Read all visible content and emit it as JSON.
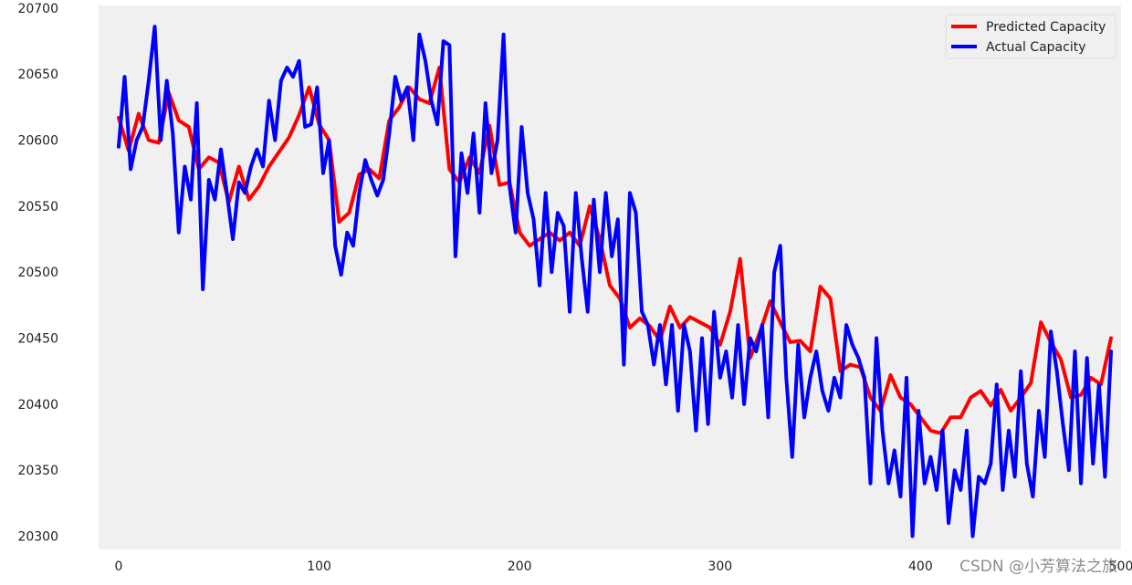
{
  "chart_data": {
    "type": "line",
    "title": "",
    "xlabel": "",
    "ylabel": "",
    "xlim": [
      -10,
      500
    ],
    "ylim": [
      20290,
      20702
    ],
    "x_ticks": [
      0,
      100,
      200,
      300,
      400,
      500
    ],
    "x_tick_labels": [
      "0",
      "100",
      "200",
      "300",
      "400",
      "500"
    ],
    "y_ticks": [
      20300,
      20350,
      20400,
      20450,
      20500,
      20550,
      20600,
      20650,
      20700
    ],
    "y_tick_labels": [
      "20300",
      "20350",
      "20400",
      "20450",
      "20500",
      "20550",
      "20600",
      "20650",
      "20700"
    ],
    "grid": false,
    "background": "#f0f0f0",
    "legend_position": "top-right",
    "series": [
      {
        "name": "Predicted Capacity",
        "color": "#ff0000",
        "x": [
          0,
          5,
          10,
          15,
          20,
          25,
          30,
          35,
          40,
          45,
          50,
          55,
          60,
          65,
          70,
          75,
          80,
          85,
          90,
          95,
          100,
          105,
          110,
          115,
          120,
          125,
          130,
          135,
          140,
          145,
          150,
          155,
          160,
          165,
          170,
          175,
          180,
          185,
          190,
          195,
          200,
          205,
          210,
          215,
          220,
          225,
          230,
          235,
          240,
          245,
          250,
          255,
          260,
          265,
          270,
          275,
          280,
          285,
          290,
          295,
          300,
          305,
          310,
          315,
          320,
          325,
          330,
          335,
          340,
          345,
          350,
          355,
          360,
          365,
          370,
          375,
          380,
          385,
          390,
          395,
          400,
          405,
          410,
          415,
          420,
          425,
          430,
          435,
          440,
          445,
          450,
          455,
          460,
          465,
          470,
          475,
          480,
          485,
          490,
          495
        ],
        "values": [
          20617,
          20592,
          20620,
          20600,
          20598,
          20636,
          20615,
          20610,
          20578,
          20587,
          20583,
          20553,
          20580,
          20555,
          20565,
          20580,
          20591,
          20602,
          20619,
          20640,
          20612,
          20600,
          20538,
          20545,
          20574,
          20578,
          20571,
          20615,
          20625,
          20640,
          20631,
          20628,
          20655,
          20578,
          20568,
          20587,
          20575,
          20611,
          20566,
          20568,
          20530,
          20520,
          20525,
          20530,
          20524,
          20530,
          20520,
          20550,
          20525,
          20490,
          20480,
          20458,
          20465,
          20459,
          20448,
          20474,
          20458,
          20466,
          20462,
          20458,
          20445,
          20470,
          20510,
          20435,
          20455,
          20478,
          20462,
          20447,
          20448,
          20440,
          20489,
          20480,
          20425,
          20430,
          20428,
          20405,
          20395,
          20422,
          20405,
          20400,
          20390,
          20380,
          20378,
          20390,
          20390,
          20405,
          20410,
          20399,
          20411,
          20395,
          20405,
          20416,
          20462,
          20447,
          20434,
          20405,
          20407,
          20420,
          20415,
          20450
        ]
      },
      {
        "name": "Actual Capacity",
        "color": "#0000ff",
        "x": [
          0,
          3,
          6,
          9,
          12,
          15,
          18,
          21,
          24,
          27,
          30,
          33,
          36,
          39,
          42,
          45,
          48,
          51,
          54,
          57,
          60,
          63,
          66,
          69,
          72,
          75,
          78,
          81,
          84,
          87,
          90,
          93,
          96,
          99,
          102,
          105,
          108,
          111,
          114,
          117,
          120,
          123,
          126,
          129,
          132,
          135,
          138,
          141,
          144,
          147,
          150,
          153,
          156,
          159,
          162,
          165,
          168,
          171,
          174,
          177,
          180,
          183,
          186,
          189,
          192,
          195,
          198,
          201,
          204,
          207,
          210,
          213,
          216,
          219,
          222,
          225,
          228,
          231,
          234,
          237,
          240,
          243,
          246,
          249,
          252,
          255,
          258,
          261,
          264,
          267,
          270,
          273,
          276,
          279,
          282,
          285,
          288,
          291,
          294,
          297,
          300,
          303,
          306,
          309,
          312,
          315,
          318,
          321,
          324,
          327,
          330,
          333,
          336,
          339,
          342,
          345,
          348,
          351,
          354,
          357,
          360,
          363,
          366,
          369,
          372,
          375,
          378,
          381,
          384,
          387,
          390,
          393,
          396,
          399,
          402,
          405,
          408,
          411,
          414,
          417,
          420,
          423,
          426,
          429,
          432,
          435,
          438,
          441,
          444,
          447,
          450,
          453,
          456,
          459,
          462,
          465,
          468,
          471,
          474,
          477,
          480,
          483,
          486,
          489,
          492,
          495
        ],
        "values": [
          20595,
          20648,
          20578,
          20600,
          20610,
          20645,
          20686,
          20600,
          20645,
          20605,
          20530,
          20580,
          20555,
          20628,
          20487,
          20570,
          20555,
          20593,
          20560,
          20525,
          20568,
          20560,
          20580,
          20593,
          20580,
          20630,
          20600,
          20645,
          20655,
          20648,
          20660,
          20610,
          20612,
          20640,
          20575,
          20600,
          20520,
          20498,
          20530,
          20520,
          20560,
          20585,
          20570,
          20558,
          20570,
          20605,
          20648,
          20630,
          20640,
          20600,
          20680,
          20660,
          20630,
          20612,
          20675,
          20672,
          20512,
          20590,
          20560,
          20605,
          20545,
          20628,
          20575,
          20600,
          20680,
          20565,
          20530,
          20610,
          20560,
          20540,
          20490,
          20560,
          20500,
          20545,
          20535,
          20470,
          20560,
          20510,
          20470,
          20555,
          20500,
          20560,
          20512,
          20540,
          20430,
          20560,
          20545,
          20470,
          20460,
          20430,
          20460,
          20415,
          20460,
          20395,
          20460,
          20440,
          20380,
          20450,
          20385,
          20470,
          20420,
          20440,
          20405,
          20460,
          20400,
          20450,
          20440,
          20460,
          20390,
          20500,
          20520,
          20420,
          20360,
          20445,
          20390,
          20420,
          20440,
          20410,
          20395,
          20420,
          20405,
          20460,
          20445,
          20435,
          20420,
          20340,
          20450,
          20380,
          20340,
          20365,
          20330,
          20420,
          20300,
          20395,
          20340,
          20360,
          20335,
          20380,
          20310,
          20350,
          20335,
          20380,
          20300,
          20345,
          20340,
          20355,
          20415,
          20335,
          20380,
          20345,
          20425,
          20355,
          20330,
          20395,
          20360,
          20455,
          20425,
          20385,
          20350,
          20440,
          20340,
          20435,
          20355,
          20415,
          20345,
          20440
        ]
      }
    ]
  },
  "watermark": "CSDN @小芳算法之旅"
}
